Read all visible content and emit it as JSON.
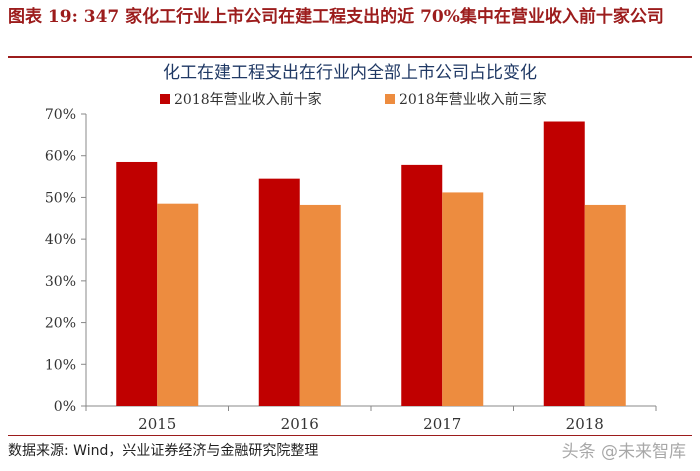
{
  "figure": {
    "caption": "图表 19: 347 家化工行业上市公司在建工程支出的近 70%集中在营业收入前十家公司",
    "source": "数据来源: Wind，兴业证券经济与金融研究院整理",
    "watermark": "头条 @未来智库"
  },
  "colors": {
    "caption": "#9c1c1c",
    "series_top10": "#c00000",
    "series_top3": "#ed8c3f",
    "axis": "#888888",
    "title": "#1f3864"
  },
  "chart_data": {
    "type": "bar",
    "title": "化工在建工程支出在行业内全部上市公司占比变化",
    "categories": [
      "2015",
      "2016",
      "2017",
      "2018"
    ],
    "series": [
      {
        "name": "2018年营业收入前十家",
        "values": [
          58.5,
          54.5,
          57.8,
          68.2
        ]
      },
      {
        "name": "2018年营业收入前三家",
        "values": [
          48.5,
          48.2,
          51.2,
          48.2
        ]
      }
    ],
    "yticks": [
      "0%",
      "10%",
      "20%",
      "30%",
      "40%",
      "50%",
      "60%",
      "70%"
    ],
    "ylim": [
      0,
      70
    ],
    "unit": "%",
    "grid": false,
    "legend_position": "top"
  }
}
